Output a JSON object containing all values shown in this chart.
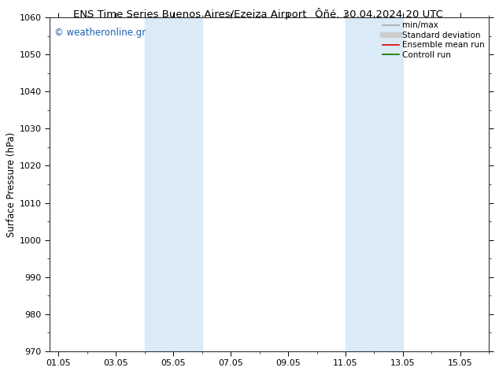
{
  "title_left": "ENS Time Series Buenos Aires/Ezeiza Airport",
  "title_right": "Ôñé. 30.04.2024 20 UTC",
  "ylabel": "Surface Pressure (hPa)",
  "ylim": [
    970,
    1060
  ],
  "yticks": [
    970,
    980,
    990,
    1000,
    1010,
    1020,
    1030,
    1040,
    1050,
    1060
  ],
  "xtick_positions": [
    0,
    2,
    4,
    6,
    8,
    10,
    12,
    14
  ],
  "xtick_labels": [
    "01.05",
    "03.05",
    "05.05",
    "07.05",
    "09.05",
    "11.05",
    "13.05",
    "15.05"
  ],
  "xlim": [
    -0.3,
    15.0
  ],
  "shaded_bands": [
    {
      "xstart": 3.0,
      "xend": 5.0
    },
    {
      "xstart": 10.0,
      "xend": 12.0
    }
  ],
  "shade_color": "#daeaf7",
  "watermark_text": "© weatheronline.gr",
  "watermark_color": "#1a5fb4",
  "legend_entries": [
    {
      "label": "min/max",
      "color": "#aaaaaa",
      "lw": 1.2,
      "style": "solid"
    },
    {
      "label": "Standard deviation",
      "color": "#cccccc",
      "lw": 5,
      "style": "solid"
    },
    {
      "label": "Ensemble mean run",
      "color": "#dd0000",
      "lw": 1.2,
      "style": "solid"
    },
    {
      "label": "Controll run",
      "color": "#007700",
      "lw": 1.2,
      "style": "solid"
    }
  ],
  "bg_color": "#ffffff",
  "spine_color": "#333333",
  "title_fontsize": 9.5,
  "axis_label_fontsize": 8.5,
  "tick_fontsize": 8,
  "legend_fontsize": 7.5
}
